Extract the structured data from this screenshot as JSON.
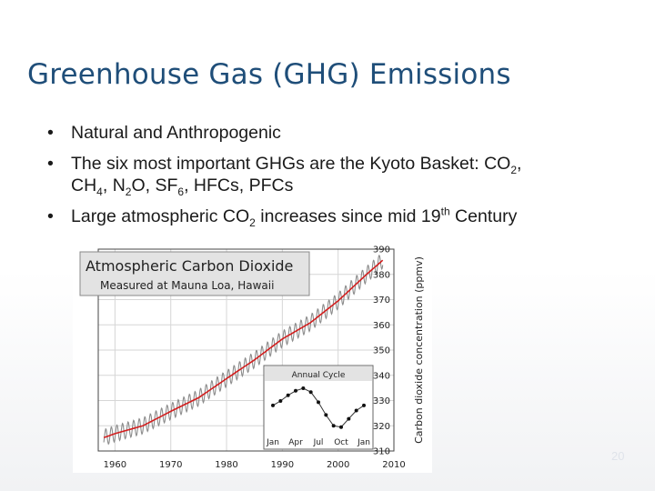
{
  "slide": {
    "title": "Greenhouse Gas (GHG) Emissions",
    "page_number": "20",
    "bullets": [
      {
        "text": "Natural and Anthropogenic"
      },
      {
        "line1_a": "The six most important GHGs are the Kyoto Basket: CO",
        "line1_sub": "2",
        "line1_b": ",",
        "line2_a": "CH",
        "line2_sub1": "4",
        "line2_b": ", N",
        "line2_sub2": "2",
        "line2_c": "O, SF",
        "line2_sub3": "6",
        "line2_d": ", HFCs, PFCs"
      },
      {
        "a": "Large atmospheric CO",
        "sub": "2",
        "b": " increases since mid 19",
        "sup": "th",
        "c": " Century"
      }
    ]
  },
  "chart_data": {
    "type": "line",
    "title": "Atmospheric Carbon Dioxide",
    "subtitle": "Measured at Mauna Loa, Hawaii",
    "ylabel": "Carbon dioxide concentration (ppmv)",
    "xlim": [
      1957,
      2010
    ],
    "ylim": [
      310,
      390
    ],
    "x_ticks": [
      "1960",
      "1970",
      "1980",
      "1990",
      "2000",
      "2010"
    ],
    "y_ticks": [
      "310",
      "320",
      "330",
      "340",
      "350",
      "360",
      "370",
      "380",
      "390"
    ],
    "grid": true,
    "series": [
      {
        "kind": "annual-mean",
        "color": "#d21f1f",
        "x": [
          1958,
          1960,
          1965,
          1970,
          1975,
          1980,
          1985,
          1990,
          1995,
          2000,
          2005,
          2008
        ],
        "y": [
          315.3,
          316.9,
          320.0,
          325.7,
          331.1,
          338.7,
          346.1,
          354.4,
          360.8,
          369.5,
          379.8,
          385.6
        ]
      },
      {
        "kind": "monthly",
        "color": "#8c8c8c",
        "seasonal_amplitude_ppm": 3.2
      }
    ],
    "inset": {
      "title": "Annual Cycle",
      "x_ticks": [
        "Jan",
        "Apr",
        "Jul",
        "Oct",
        "Jan"
      ],
      "months": [
        1,
        2,
        3,
        4,
        5,
        6,
        7,
        8,
        9,
        10,
        11,
        12,
        13
      ],
      "values": [
        0.3,
        1.0,
        1.9,
        2.6,
        3.0,
        2.4,
        0.8,
        -1.2,
        -2.9,
        -3.1,
        -1.8,
        -0.5,
        0.3
      ],
      "ylim": [
        -4,
        4
      ]
    }
  }
}
